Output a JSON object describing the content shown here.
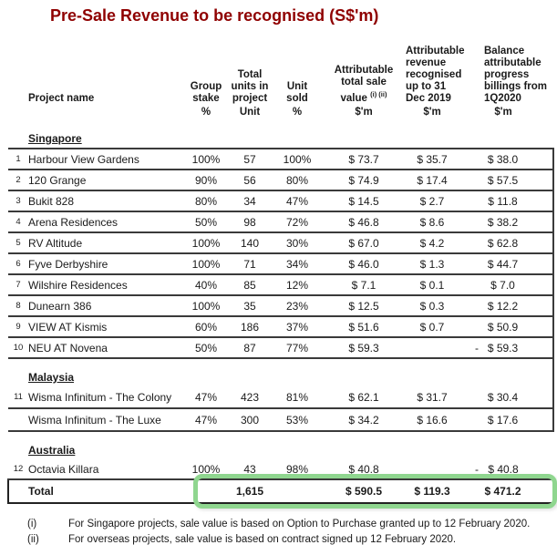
{
  "title": "Pre-Sale Revenue to be recognised (S$'m)",
  "colors": {
    "title_red": "#8F0000",
    "highlight_green": "#8FD68F",
    "border_dark": "#3A3A3A"
  },
  "table": {
    "header": {
      "project": "Project name",
      "cols": [
        {
          "lines": [
            "Group",
            "stake"
          ],
          "unit": "%"
        },
        {
          "lines": [
            "Total",
            "units in",
            "project"
          ],
          "unit": "Unit"
        },
        {
          "lines": [
            "Unit",
            "sold"
          ],
          "unit": "%"
        },
        {
          "lines": [
            "Attributable",
            "total sale",
            "value"
          ],
          "sup": "(i) (ii)",
          "unit": "$'m"
        },
        {
          "lines": [
            "Attributable",
            "revenue",
            "recognised",
            "up to 31",
            "Dec 2019"
          ],
          "unit": "$'m"
        },
        {
          "lines": [
            "Balance",
            "attributable",
            "progress",
            "billings from",
            "1Q2020"
          ],
          "unit": "$'m"
        }
      ]
    },
    "rows": [
      {
        "type": "section",
        "label": "Singapore",
        "ruled": true,
        "no_right": true
      },
      {
        "type": "data",
        "num": "1",
        "name": "Harbour View Gardens",
        "stake": "100%",
        "units": "57",
        "sold": "100%",
        "sale": "$ 73.7",
        "revenue": "$ 35.7",
        "balance": "$ 38.0"
      },
      {
        "type": "data",
        "num": "2",
        "name": "120 Grange",
        "stake": "90%",
        "units": "56",
        "sold": "80%",
        "sale": "$ 74.9",
        "revenue": "$ 17.4",
        "balance": "$ 57.5"
      },
      {
        "type": "data",
        "num": "3",
        "name": "Bukit 828",
        "stake": "80%",
        "units": "34",
        "sold": "47%",
        "sale": "$ 14.5",
        "revenue": "$ 2.7",
        "balance": "$ 11.8"
      },
      {
        "type": "data",
        "num": "4",
        "name": "Arena Residences",
        "stake": "50%",
        "units": "98",
        "sold": "72%",
        "sale": "$ 46.8",
        "revenue": "$ 8.6",
        "balance": "$ 38.2"
      },
      {
        "type": "data",
        "num": "5",
        "name": "RV Altitude",
        "stake": "100%",
        "units": "140",
        "sold": "30%",
        "sale": "$ 67.0",
        "revenue": "$ 4.2",
        "balance": "$ 62.8"
      },
      {
        "type": "data",
        "num": "6",
        "name": "Fyve Derbyshire",
        "stake": "100%",
        "units": "71",
        "sold": "34%",
        "sale": "$ 46.0",
        "revenue": "$ 1.3",
        "balance": "$ 44.7"
      },
      {
        "type": "data",
        "num": "7",
        "name": "Wilshire Residences",
        "stake": "40%",
        "units": "85",
        "sold": "12%",
        "sale": "$ 7.1",
        "revenue": "$ 0.1",
        "balance": "$ 7.0"
      },
      {
        "type": "data",
        "num": "8",
        "name": "Dunearn 386",
        "stake": "100%",
        "units": "35",
        "sold": "23%",
        "sale": "$ 12.5",
        "revenue": "$ 0.3",
        "balance": "$ 12.2"
      },
      {
        "type": "data",
        "num": "9",
        "name": "VIEW AT Kismis",
        "stake": "60%",
        "units": "186",
        "sold": "37%",
        "sale": "$ 51.6",
        "revenue": "$ 0.7",
        "balance": "$ 50.9"
      },
      {
        "type": "data",
        "num": "10",
        "name": "NEU AT Novena",
        "stake": "50%",
        "units": "87",
        "sold": "77%",
        "sale": "$ 59.3",
        "revenue": "-",
        "balance": "$ 59.3"
      },
      {
        "type": "section",
        "label": "Malaysia"
      },
      {
        "type": "data",
        "num": "11",
        "name": "Wisma Infinitum - The Colony",
        "stake": "47%",
        "units": "423",
        "sold": "81%",
        "sale": "$ 62.1",
        "revenue": "$ 31.7",
        "balance": "$ 30.4",
        "tall": true
      },
      {
        "type": "data",
        "num": "",
        "name": "Wisma Infinitum - The Luxe",
        "stake": "47%",
        "units": "300",
        "sold": "53%",
        "sale": "$ 34.2",
        "revenue": "$ 16.6",
        "balance": "$ 17.6",
        "tall": true
      },
      {
        "type": "section",
        "label": "Australia",
        "no_right": true
      },
      {
        "type": "data",
        "num": "12",
        "name": "Octavia Killara",
        "stake": "100%",
        "units": "43",
        "sold": "98%",
        "sale": "$ 40.8",
        "revenue": "-",
        "balance": "$ 40.8",
        "no_right": true
      }
    ],
    "total": {
      "label": "Total",
      "units": "1,615",
      "sale": "$ 590.5",
      "revenue": "$ 119.3",
      "balance": "$ 471.2"
    }
  },
  "footnotes": [
    {
      "marker": "(i)",
      "text": "For Singapore projects, sale value is based on Option to Purchase granted up to 12 February 2020."
    },
    {
      "marker": "(ii)",
      "text": "For overseas projects, sale value is based on contract signed up 12 February 2020."
    }
  ]
}
